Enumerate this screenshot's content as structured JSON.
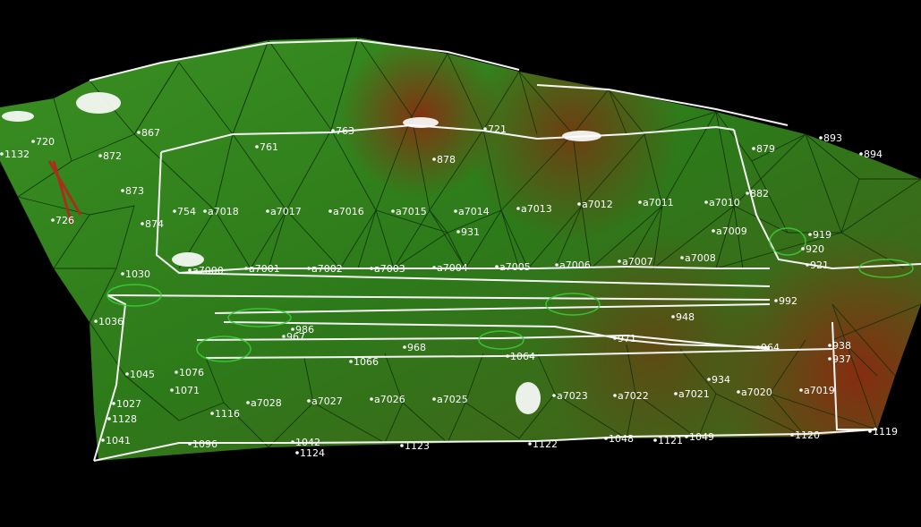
{
  "colors": {
    "background": "#000000",
    "surface_green": "#2e7d1c",
    "surface_dark": "#1e5a12",
    "surface_red": "#8a2a10",
    "mesh_line": "#0c2a08",
    "path_line": "#ffffff",
    "label": "#ffffff",
    "highlight_green": "#3ad13a"
  },
  "labels": {
    "l1132": "1132",
    "l720": "720",
    "l872": "872",
    "l867": "867",
    "l873": "873",
    "l726": "726",
    "l874": "874",
    "l754": "754",
    "l7018": "a7018",
    "l7017": "a7017",
    "l7016": "a7016",
    "l7015": "a7015",
    "l7014": "a7014",
    "l7013": "a7013",
    "l7012": "a7012",
    "l7011": "a7011",
    "l7010": "a7010",
    "l882": "882",
    "l879": "879",
    "l893": "893",
    "l894": "894",
    "l878": "878",
    "l763": "763",
    "l761": "761",
    "l721": "721",
    "l931": "931",
    "l7009": "a7009",
    "l919": "919",
    "l920": "920",
    "l7001": "a7001",
    "l7002": "a7002",
    "l7003": "a7003",
    "l7004": "a7004",
    "l7005": "a7005",
    "l7006": "a7006",
    "l7007": "a7007",
    "l7008": "a7008",
    "l7000": "a7000",
    "l921": "921",
    "l992": "992",
    "l948": "948",
    "l971": "971",
    "l964": "964",
    "l934": "934",
    "l938": "938",
    "l937": "937",
    "l1076": "1076",
    "l1071": "1071",
    "l1128": "1128",
    "l1041": "1041",
    "l7028": "a7028",
    "l7027": "a7027",
    "l7026": "a7026",
    "l7025": "a7025",
    "l7023": "a7023",
    "l7022": "a7022",
    "l7021": "a7021",
    "l7020": "a7020",
    "l7019": "a7019",
    "l1116": "1116",
    "l1042": "1042",
    "l1124": "1124",
    "l1123": "1123",
    "l1048": "1048",
    "l1122": "1122",
    "l1121": "1121",
    "l1049": "1049",
    "l1120": "1120",
    "l1119": "1119",
    "l1064": "1064",
    "l1066": "1066",
    "l1045": "1045",
    "l1096": "1096",
    "l1027": "1027",
    "l1036": "1036",
    "l986": "986",
    "l968": "968",
    "l967": "967",
    "l1030": "1030"
  }
}
